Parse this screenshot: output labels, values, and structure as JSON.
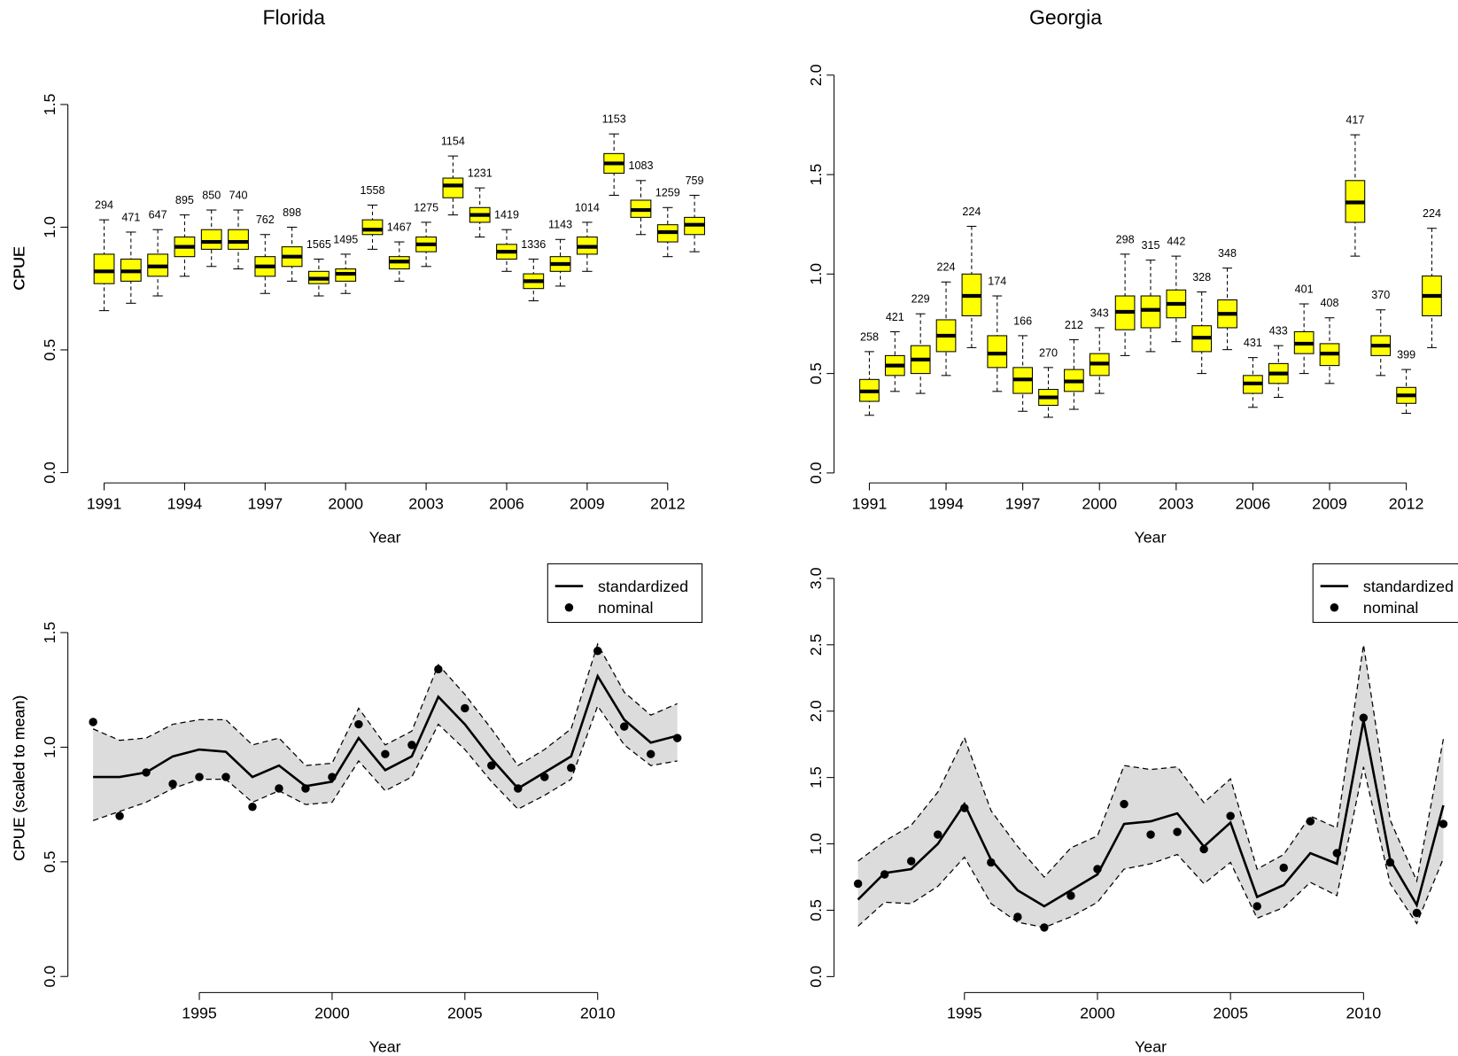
{
  "chart_data": [
    {
      "type": "box",
      "title": "Florida",
      "x_label": "Year",
      "y_label": "CPUE",
      "color": "#ffff00",
      "x": [
        1991,
        1992,
        1993,
        1994,
        1995,
        1996,
        1997,
        1998,
        1999,
        2000,
        2001,
        2002,
        2003,
        2004,
        2005,
        2006,
        2007,
        2008,
        2009,
        2010,
        2011,
        2012,
        2013
      ],
      "whislo": [
        0.66,
        0.69,
        0.72,
        0.8,
        0.84,
        0.83,
        0.73,
        0.78,
        0.72,
        0.73,
        0.91,
        0.78,
        0.84,
        1.05,
        0.96,
        0.82,
        0.7,
        0.76,
        0.82,
        1.13,
        0.97,
        0.88,
        0.9
      ],
      "q1": [
        0.77,
        0.78,
        0.8,
        0.88,
        0.91,
        0.91,
        0.8,
        0.84,
        0.77,
        0.78,
        0.97,
        0.83,
        0.9,
        1.12,
        1.02,
        0.87,
        0.75,
        0.82,
        0.89,
        1.22,
        1.04,
        0.94,
        0.97
      ],
      "med": [
        0.82,
        0.82,
        0.84,
        0.92,
        0.94,
        0.94,
        0.84,
        0.88,
        0.79,
        0.81,
        0.99,
        0.86,
        0.93,
        1.17,
        1.05,
        0.9,
        0.78,
        0.85,
        0.92,
        1.26,
        1.07,
        0.98,
        1.01
      ],
      "q3": [
        0.89,
        0.87,
        0.89,
        0.96,
        0.99,
        0.99,
        0.88,
        0.92,
        0.82,
        0.83,
        1.03,
        0.88,
        0.96,
        1.2,
        1.08,
        0.93,
        0.81,
        0.88,
        0.96,
        1.3,
        1.11,
        1.01,
        1.04
      ],
      "whishi": [
        1.03,
        0.98,
        0.99,
        1.05,
        1.07,
        1.07,
        0.97,
        1.0,
        0.87,
        0.89,
        1.09,
        0.94,
        1.02,
        1.29,
        1.16,
        0.99,
        0.87,
        0.95,
        1.02,
        1.38,
        1.19,
        1.08,
        1.13
      ],
      "counts": [
        294,
        471,
        647,
        895,
        850,
        740,
        762,
        898,
        1565,
        1495,
        1558,
        1467,
        1275,
        1154,
        1231,
        1419,
        1336,
        1143,
        1014,
        1153,
        1083,
        1259,
        759
      ],
      "xlim": [
        1989.65,
        2013.28
      ],
      "ylim": [
        -0.042,
        1.705
      ],
      "xticks": [
        1991,
        1994,
        1997,
        2000,
        2003,
        2006,
        2009,
        2012
      ],
      "yticks": [
        {
          "value": 0,
          "label": "0.0"
        },
        {
          "value": 0.5,
          "label": "0.5"
        },
        {
          "value": 1,
          "label": "1.0"
        },
        {
          "value": 1.5,
          "label": "1.5"
        }
      ]
    },
    {
      "type": "box",
      "title": "Georgia",
      "x_label": "Year",
      "y_label": "CPUE",
      "color": "#ffff00",
      "x": [
        1991,
        1992,
        1993,
        1994,
        1995,
        1996,
        1997,
        1998,
        1999,
        2000,
        2001,
        2002,
        2003,
        2004,
        2005,
        2006,
        2007,
        2008,
        2009,
        2010,
        2011,
        2012,
        2013
      ],
      "whislo": [
        0.29,
        0.41,
        0.4,
        0.49,
        0.63,
        0.41,
        0.31,
        0.28,
        0.32,
        0.4,
        0.59,
        0.61,
        0.66,
        0.5,
        0.62,
        0.33,
        0.38,
        0.5,
        0.45,
        1.09,
        0.49,
        0.3,
        0.63
      ],
      "q1": [
        0.36,
        0.49,
        0.5,
        0.61,
        0.79,
        0.53,
        0.4,
        0.34,
        0.41,
        0.49,
        0.72,
        0.73,
        0.78,
        0.61,
        0.73,
        0.4,
        0.45,
        0.6,
        0.54,
        1.26,
        0.59,
        0.35,
        0.79
      ],
      "med": [
        0.41,
        0.54,
        0.57,
        0.69,
        0.89,
        0.6,
        0.47,
        0.38,
        0.46,
        0.55,
        0.81,
        0.82,
        0.85,
        0.68,
        0.8,
        0.45,
        0.5,
        0.65,
        0.6,
        1.36,
        0.64,
        0.39,
        0.89
      ],
      "q3": [
        0.47,
        0.59,
        0.64,
        0.77,
        1.0,
        0.69,
        0.53,
        0.42,
        0.52,
        0.6,
        0.89,
        0.89,
        0.92,
        0.74,
        0.87,
        0.49,
        0.55,
        0.71,
        0.65,
        1.47,
        0.69,
        0.43,
        0.99
      ],
      "whishi": [
        0.61,
        0.71,
        0.8,
        0.96,
        1.24,
        0.89,
        0.69,
        0.53,
        0.67,
        0.73,
        1.1,
        1.07,
        1.09,
        0.91,
        1.03,
        0.58,
        0.64,
        0.85,
        0.78,
        1.7,
        0.82,
        0.52,
        1.23
      ],
      "counts": [
        258,
        421,
        229,
        224,
        224,
        174,
        166,
        270,
        212,
        343,
        298,
        315,
        442,
        328,
        348,
        431,
        433,
        401,
        408,
        417,
        370,
        399,
        224
      ],
      "xlim": [
        1989.62,
        2014.35
      ],
      "ylim": [
        -0.05,
        2.11
      ],
      "xticks": [
        1991,
        1994,
        1997,
        2000,
        2003,
        2006,
        2009,
        2012
      ],
      "yticks": [
        {
          "value": 0,
          "label": "0.0"
        },
        {
          "value": 0.5,
          "label": "0.5"
        },
        {
          "value": 1,
          "label": "1.0"
        },
        {
          "value": 1.5,
          "label": "1.5"
        },
        {
          "value": 2,
          "label": "2.0"
        }
      ]
    },
    {
      "type": "line",
      "x_label": "Year",
      "y_label": "CPUE (scaled to mean)",
      "legend": "top-right",
      "x": [
        1991,
        1992,
        1993,
        1994,
        1995,
        1996,
        1997,
        1998,
        1999,
        2000,
        2001,
        2002,
        2003,
        2004,
        2005,
        2006,
        2007,
        2008,
        2009,
        2010,
        2011,
        2012,
        2013
      ],
      "band": {
        "color": "#dcdcdc",
        "lower": [
          0.68,
          0.72,
          0.76,
          0.82,
          0.86,
          0.86,
          0.76,
          0.81,
          0.75,
          0.76,
          0.94,
          0.81,
          0.87,
          1.1,
          0.99,
          0.85,
          0.73,
          0.79,
          0.86,
          1.18,
          1.01,
          0.92,
          0.94
        ],
        "upper": [
          1.08,
          1.03,
          1.04,
          1.1,
          1.12,
          1.12,
          1.01,
          1.04,
          0.92,
          0.93,
          1.17,
          1.01,
          1.07,
          1.36,
          1.23,
          1.08,
          0.92,
          0.99,
          1.08,
          1.45,
          1.24,
          1.14,
          1.19
        ]
      },
      "series": [
        {
          "name": "standardized",
          "kind": "line",
          "color": "#000000",
          "values": [
            0.87,
            0.87,
            0.89,
            0.96,
            0.99,
            0.98,
            0.87,
            0.92,
            0.83,
            0.85,
            1.04,
            0.9,
            0.96,
            1.22,
            1.1,
            0.95,
            0.82,
            0.89,
            0.96,
            1.31,
            1.12,
            1.02,
            1.05
          ]
        },
        {
          "name": "nominal",
          "kind": "point",
          "color": "#000000",
          "values": [
            1.11,
            0.7,
            0.89,
            0.84,
            0.87,
            0.87,
            0.74,
            0.82,
            0.82,
            0.87,
            1.1,
            0.97,
            1.01,
            1.34,
            1.17,
            0.92,
            0.82,
            0.87,
            0.91,
            1.42,
            1.09,
            0.97,
            1.04
          ]
        }
      ],
      "xlim": [
        1990.05,
        2013.93
      ],
      "ylim": [
        -0.07,
        1.8
      ],
      "xticks": [
        1995,
        2000,
        2005,
        2010
      ],
      "yticks": [
        {
          "value": 0,
          "label": "0.0"
        },
        {
          "value": 0.5,
          "label": "0.5"
        },
        {
          "value": 1,
          "label": "1.0"
        },
        {
          "value": 1.5,
          "label": "1.5"
        }
      ]
    },
    {
      "type": "line",
      "x_label": "Year",
      "y_label": "CPUE (scaled to mean)",
      "legend": "top-right",
      "x": [
        1991,
        1992,
        1993,
        1994,
        1995,
        1996,
        1997,
        1998,
        1999,
        2000,
        2001,
        2002,
        2003,
        2004,
        2005,
        2006,
        2007,
        2008,
        2009,
        2010,
        2011,
        2012,
        2013
      ],
      "band": {
        "color": "#dcdcdc",
        "lower": [
          0.38,
          0.56,
          0.55,
          0.68,
          0.9,
          0.55,
          0.41,
          0.37,
          0.45,
          0.56,
          0.81,
          0.85,
          0.92,
          0.7,
          0.86,
          0.44,
          0.52,
          0.71,
          0.61,
          1.58,
          0.7,
          0.4,
          0.89
        ],
        "upper": [
          0.87,
          1.02,
          1.14,
          1.39,
          1.8,
          1.25,
          0.98,
          0.75,
          0.97,
          1.06,
          1.59,
          1.56,
          1.58,
          1.31,
          1.49,
          0.81,
          0.92,
          1.21,
          1.12,
          2.5,
          1.18,
          0.72,
          1.79
        ]
      },
      "series": [
        {
          "name": "standardized",
          "kind": "line",
          "color": "#000000",
          "values": [
            0.58,
            0.78,
            0.81,
            1.0,
            1.3,
            0.88,
            0.65,
            0.53,
            0.65,
            0.77,
            1.15,
            1.17,
            1.23,
            0.98,
            1.16,
            0.6,
            0.69,
            0.93,
            0.85,
            1.93,
            0.88,
            0.54,
            1.29
          ]
        },
        {
          "name": "nominal",
          "kind": "point",
          "color": "#000000",
          "values": [
            0.7,
            0.77,
            0.87,
            1.07,
            1.27,
            0.86,
            0.45,
            0.37,
            0.61,
            0.81,
            1.3,
            1.07,
            1.09,
            0.96,
            1.21,
            0.53,
            0.82,
            1.17,
            0.93,
            1.95,
            0.86,
            0.48,
            1.15
          ]
        }
      ],
      "xlim": [
        1990.1,
        2013.9
      ],
      "ylim": [
        -0.12,
        3.11
      ],
      "xticks": [
        1995,
        2000,
        2005,
        2010
      ],
      "yticks": [
        {
          "value": 0,
          "label": "0.0"
        },
        {
          "value": 0.5,
          "label": "0.5"
        },
        {
          "value": 1,
          "label": "1.0"
        },
        {
          "value": 1.5,
          "label": "1.5"
        },
        {
          "value": 2,
          "label": "2.0"
        },
        {
          "value": 2.5,
          "label": "2.5"
        },
        {
          "value": 3,
          "label": "3.0"
        }
      ]
    }
  ]
}
